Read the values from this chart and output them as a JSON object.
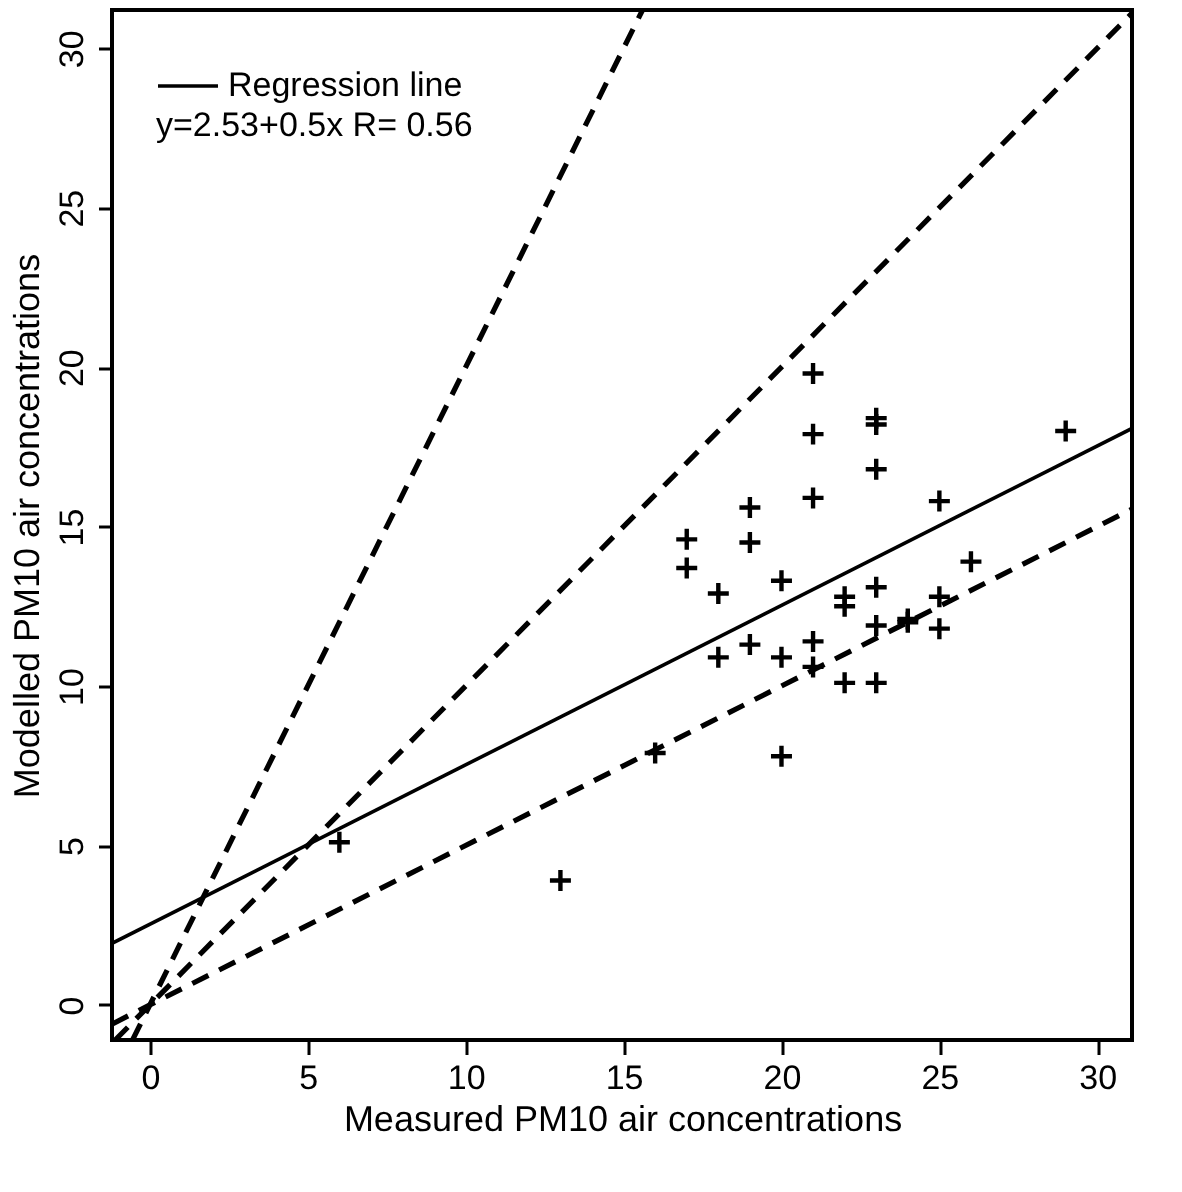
{
  "chart_data": {
    "type": "scatter",
    "xlabel": "Measured PM10 air concentrations",
    "ylabel": "Modelled PM10 air concentrations",
    "xlim": [
      -1.2,
      31.1
    ],
    "ylim": [
      -1.1,
      31.2
    ],
    "xticks": [
      0,
      5,
      10,
      15,
      20,
      25,
      30
    ],
    "yticks": [
      0,
      5,
      10,
      15,
      20,
      25,
      30
    ],
    "grid": false,
    "legend": "top left",
    "annotations": [
      "y=2.53+0.5x      R= 0.56"
    ],
    "series": [
      {
        "marker": "cross",
        "color": "#000000",
        "x": [
          6,
          13,
          16,
          17,
          17,
          18,
          18,
          19,
          19,
          19,
          20,
          20,
          20,
          21,
          21,
          21,
          21,
          21,
          22,
          22,
          22,
          23,
          23,
          23,
          23,
          23,
          23,
          24,
          24,
          25,
          25,
          25,
          26,
          29
        ],
        "values": [
          5.1,
          3.9,
          7.9,
          14.6,
          13.7,
          12.9,
          10.9,
          15.6,
          14.5,
          11.3,
          13.3,
          10.9,
          7.8,
          19.8,
          17.9,
          15.9,
          11.4,
          10.6,
          12.8,
          12.5,
          10.1,
          18.4,
          18.2,
          16.8,
          13.1,
          11.9,
          10.1,
          12.1,
          12.0,
          15.8,
          12.8,
          11.8,
          13.9,
          18.0
        ]
      },
      {
        "type": "line",
        "name": "Regression line",
        "line_style": "solid",
        "color": "#000000",
        "x": [
          -1.2,
          31.1
        ],
        "values": [
          1.93,
          18.08
        ]
      },
      {
        "type": "line",
        "line_style": "dashed",
        "color": "#000000",
        "x": [
          -1.1,
          31.1
        ],
        "values": [
          -1.1,
          31.1
        ]
      },
      {
        "type": "line",
        "line_style": "dashed",
        "color": "#000000",
        "x": [
          -0.55,
          15.6
        ],
        "values": [
          -1.1,
          31.2
        ]
      },
      {
        "type": "line",
        "line_style": "dashed",
        "color": "#000000",
        "x": [
          -1.2,
          31.1
        ],
        "values": [
          -0.6,
          15.55
        ]
      }
    ]
  }
}
